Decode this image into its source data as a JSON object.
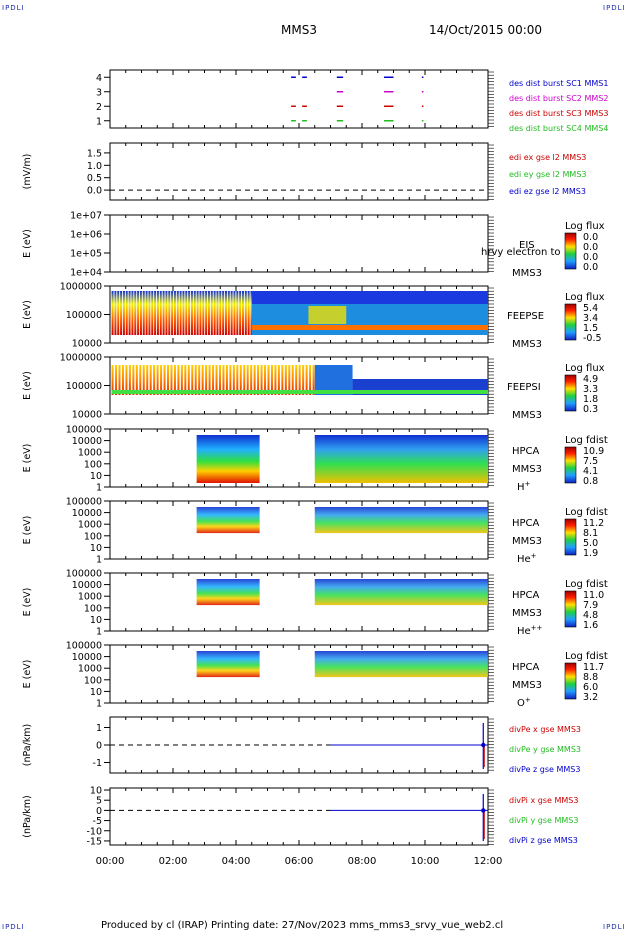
{
  "corner_label": "IPDLI",
  "header": {
    "spacecraft": "MMS3",
    "date": "14/Oct/2015 00:00"
  },
  "footer": {
    "text": "Produced by cl (IRAP)   Printing date: 27/Nov/2023   mms_mms3_srvy_vue_web2.cl"
  },
  "colors": {
    "red": "#cc0000",
    "green": "#22bb22",
    "blue": "#0000cc",
    "magenta": "#cc00cc"
  },
  "time_axis": {
    "ticks": [
      "00:00",
      "02:00",
      "04:00",
      "06:00",
      "08:00",
      "10:00",
      "12:00"
    ],
    "range_hours": [
      0,
      12
    ]
  },
  "chart_data": [
    {
      "type": "line",
      "panel": "burst",
      "ylim": [
        0.5,
        4.5
      ],
      "yticks": [
        "1",
        "2",
        "3",
        "4"
      ],
      "series": [
        {
          "name": "des dist burst SC1 MMS1",
          "color": "#0000cc",
          "y": 4,
          "x_start": [
            5.75,
            6.1,
            7.2,
            8.7,
            9.9
          ],
          "x_end": [
            5.9,
            6.25,
            7.4,
            9.0,
            9.95
          ]
        },
        {
          "name": "des dist burst SC2 MMS2",
          "color": "#cc00cc",
          "y": 3,
          "x_start": [
            7.2,
            8.7,
            9.9
          ],
          "x_end": [
            7.4,
            9.0,
            9.95
          ]
        },
        {
          "name": "des dist burst SC3 MMS3",
          "color": "#cc0000",
          "y": 2,
          "x_start": [
            5.75,
            6.1,
            7.2,
            8.7,
            9.9
          ],
          "x_end": [
            5.9,
            6.25,
            7.4,
            9.0,
            9.95
          ]
        },
        {
          "name": "des dist burst SC4 MMS4",
          "color": "#22bb22",
          "y": 1,
          "x_start": [
            5.75,
            6.1,
            7.2,
            8.7,
            9.9
          ],
          "x_end": [
            5.9,
            6.25,
            7.4,
            9.0,
            9.95
          ]
        }
      ]
    },
    {
      "type": "line",
      "panel": "edi",
      "ylabel": "(mV/m)",
      "ylim": [
        -0.4,
        1.9
      ],
      "yticks": [
        "0.0",
        "0.5",
        "1.0",
        "1.5"
      ],
      "series": [
        {
          "name": "edi ex gse l2 MMS3",
          "color": "#cc0000"
        },
        {
          "name": "edi ey gse l2 MMS3",
          "color": "#22bb22"
        },
        {
          "name": "edi ez gse l2 MMS3",
          "color": "#0000cc"
        }
      ],
      "zero_line": 0
    },
    {
      "type": "heatmap",
      "panel": "eis",
      "ylabel": "E (eV)",
      "yticks": [
        "1e+07",
        "1e+06",
        "1e+05",
        "1e+04"
      ],
      "right_labels": [
        "EIS",
        "MMS3"
      ],
      "overlay_text": "hrvy electron to",
      "colorbar": {
        "title": "Log flux",
        "values": [
          "0.0",
          "0.0",
          "0.0",
          "0.0"
        ]
      },
      "coverage": []
    },
    {
      "type": "heatmap",
      "panel": "feepse",
      "ylabel": "E (eV)",
      "yticks": [
        "1000000",
        "100000",
        "10000"
      ],
      "right_labels": [
        "FEEPSE",
        "MMS3"
      ],
      "colorbar": {
        "title": "Log flux",
        "values": [
          "5.4",
          "3.4",
          "1.5",
          "-0.5"
        ]
      },
      "coverage": [
        [
          0,
          12
        ]
      ]
    },
    {
      "type": "heatmap",
      "panel": "feepsi",
      "ylabel": "E (eV)",
      "yticks": [
        "1000000",
        "100000",
        "10000"
      ],
      "right_labels": [
        "FEEPSI",
        "MMS3"
      ],
      "colorbar": {
        "title": "Log flux",
        "values": [
          "4.9",
          "3.3",
          "1.8",
          "0.3"
        ]
      },
      "coverage": [
        [
          0,
          12
        ]
      ]
    },
    {
      "type": "heatmap",
      "panel": "hpca-h",
      "ylabel": "E (eV)",
      "yticks": [
        "100000",
        "10000",
        "1000",
        "100",
        "10",
        "1"
      ],
      "right_labels": [
        "HPCA",
        "MMS3"
      ],
      "species": "H",
      "species_charge": "+",
      "colorbar": {
        "title": "Log fdist",
        "values": [
          "10.9",
          "7.5",
          "4.1",
          "0.8"
        ]
      },
      "coverage": [
        [
          2.75,
          4.75
        ],
        [
          6.5,
          12
        ]
      ]
    },
    {
      "type": "heatmap",
      "panel": "hpca-he",
      "ylabel": "E (eV)",
      "yticks": [
        "100000",
        "10000",
        "1000",
        "100",
        "10",
        "1"
      ],
      "right_labels": [
        "HPCA",
        "MMS3"
      ],
      "species": "He",
      "species_charge": "+",
      "colorbar": {
        "title": "Log fdist",
        "values": [
          "11.2",
          "8.1",
          "5.0",
          "1.9"
        ]
      },
      "coverage": [
        [
          2.75,
          4.75
        ],
        [
          6.5,
          12
        ]
      ]
    },
    {
      "type": "heatmap",
      "panel": "hpca-hepp",
      "ylabel": "E (eV)",
      "yticks": [
        "100000",
        "10000",
        "1000",
        "100",
        "10",
        "1"
      ],
      "right_labels": [
        "HPCA",
        "MMS3"
      ],
      "species": "He",
      "species_charge": "++",
      "colorbar": {
        "title": "Log fdist",
        "values": [
          "11.0",
          "7.9",
          "4.8",
          "1.6"
        ]
      },
      "coverage": [
        [
          2.75,
          4.75
        ],
        [
          6.5,
          12
        ]
      ]
    },
    {
      "type": "heatmap",
      "panel": "hpca-o",
      "ylabel": "E (eV)",
      "yticks": [
        "100000",
        "10000",
        "1000",
        "100",
        "10",
        "1"
      ],
      "right_labels": [
        "HPCA",
        "MMS3"
      ],
      "species": "O",
      "species_charge": "+",
      "colorbar": {
        "title": "Log fdist",
        "values": [
          "11.7",
          "8.8",
          "6.0",
          "3.2"
        ]
      },
      "coverage": [
        [
          2.75,
          4.75
        ],
        [
          6.5,
          12
        ]
      ]
    },
    {
      "type": "line",
      "panel": "divpe",
      "ylabel": "(nPa/km)",
      "ylim": [
        -1.6,
        1.6
      ],
      "yticks": [
        "1",
        "0",
        "-1"
      ],
      "series": [
        {
          "name": "divPe x gse MMS3",
          "color": "#cc0000"
        },
        {
          "name": "divPe y gse MMS3",
          "color": "#22bb22"
        },
        {
          "name": "divPe z gse MMS3",
          "color": "#0000cc"
        }
      ],
      "zero_line": 0,
      "line_start_hour": 7.0,
      "spike_hour": 11.85
    },
    {
      "type": "line",
      "panel": "divpi",
      "ylabel": "(nPa/km)",
      "ylim": [
        -17,
        11
      ],
      "yticks": [
        "10",
        "5",
        "0",
        "-5",
        "-10",
        "-15"
      ],
      "series": [
        {
          "name": "divPi x gse MMS3",
          "color": "#cc0000"
        },
        {
          "name": "divPi y gse MMS3",
          "color": "#22bb22"
        },
        {
          "name": "divPi z gse MMS3",
          "color": "#0000cc"
        }
      ],
      "zero_line": 0,
      "line_start_hour": 7.0,
      "spike_hour": 11.85
    }
  ]
}
